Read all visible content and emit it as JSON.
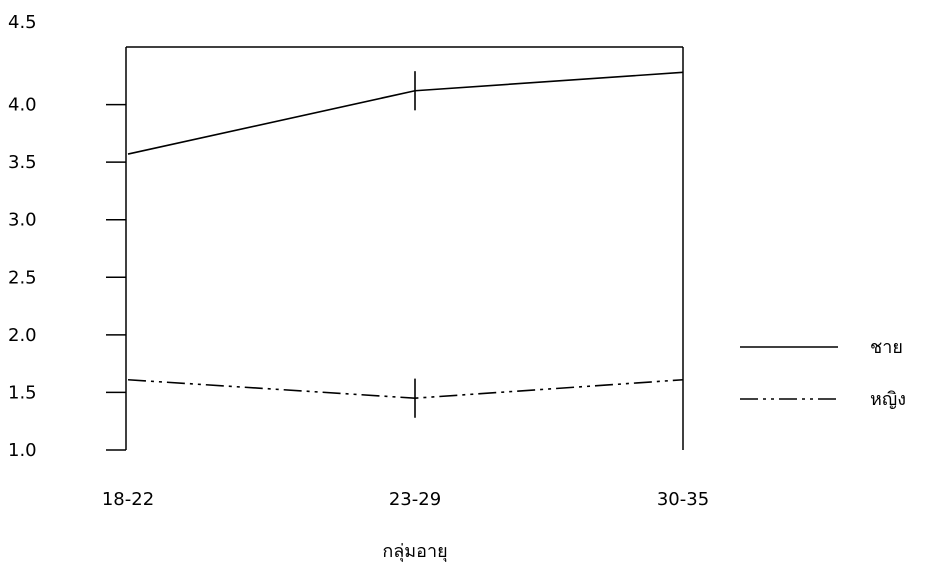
{
  "chart_data": {
    "type": "line",
    "title": "",
    "xlabel": "กลุ่มอายุ",
    "ylabel": "",
    "categories": [
      "18-22",
      "23-29",
      "30-35"
    ],
    "ylim": [
      1.0,
      4.5
    ],
    "yticks": [
      "1.0",
      "1.5",
      "2.0",
      "2.5",
      "3.0",
      "3.5",
      "4.0",
      "4.5"
    ],
    "grid": false,
    "legend_position": "right",
    "series": [
      {
        "name": "ชาย",
        "values": [
          3.57,
          4.12,
          4.28
        ],
        "line_style": "solid",
        "error_bar_at": [
          1
        ],
        "error_half": 0.17
      },
      {
        "name": "หญิง",
        "values": [
          1.61,
          1.45,
          1.61
        ],
        "line_style": "dash-dot-dot",
        "error_bar_at": [
          1
        ],
        "error_half": 0.17
      }
    ]
  }
}
